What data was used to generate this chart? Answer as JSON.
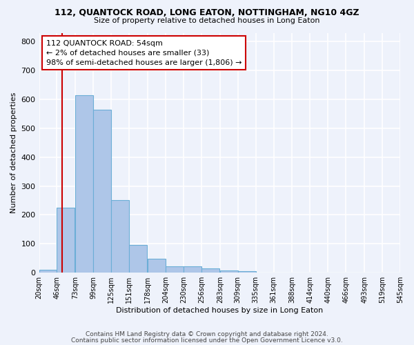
{
  "title1": "112, QUANTOCK ROAD, LONG EATON, NOTTINGHAM, NG10 4GZ",
  "title2": "Size of property relative to detached houses in Long Eaton",
  "xlabel": "Distribution of detached houses by size in Long Eaton",
  "ylabel": "Number of detached properties",
  "bar_color": "#aec6e8",
  "bar_edge_color": "#6baed6",
  "vline_color": "#cc0000",
  "vline_x": 54,
  "annotation_title": "112 QUANTOCK ROAD: 54sqm",
  "annotation_line2": "← 2% of detached houses are smaller (33)",
  "annotation_line3": "98% of semi-detached houses are larger (1,806) →",
  "annotation_box_color": "#ffffff",
  "annotation_box_edge": "#cc0000",
  "bins": [
    20,
    46,
    73,
    99,
    125,
    151,
    178,
    204,
    230,
    256,
    283,
    309,
    335,
    361,
    388,
    414,
    440,
    466,
    493,
    519,
    545
  ],
  "counts": [
    10,
    225,
    615,
    563,
    250,
    97,
    48,
    21,
    21,
    15,
    8,
    6,
    0,
    0,
    0,
    0,
    0,
    0,
    0,
    0
  ],
  "ylim": [
    0,
    830
  ],
  "yticks": [
    0,
    100,
    200,
    300,
    400,
    500,
    600,
    700,
    800
  ],
  "footer1": "Contains HM Land Registry data © Crown copyright and database right 2024.",
  "footer2": "Contains public sector information licensed under the Open Government Licence v3.0.",
  "bg_color": "#eef2fb",
  "grid_color": "#ffffff"
}
